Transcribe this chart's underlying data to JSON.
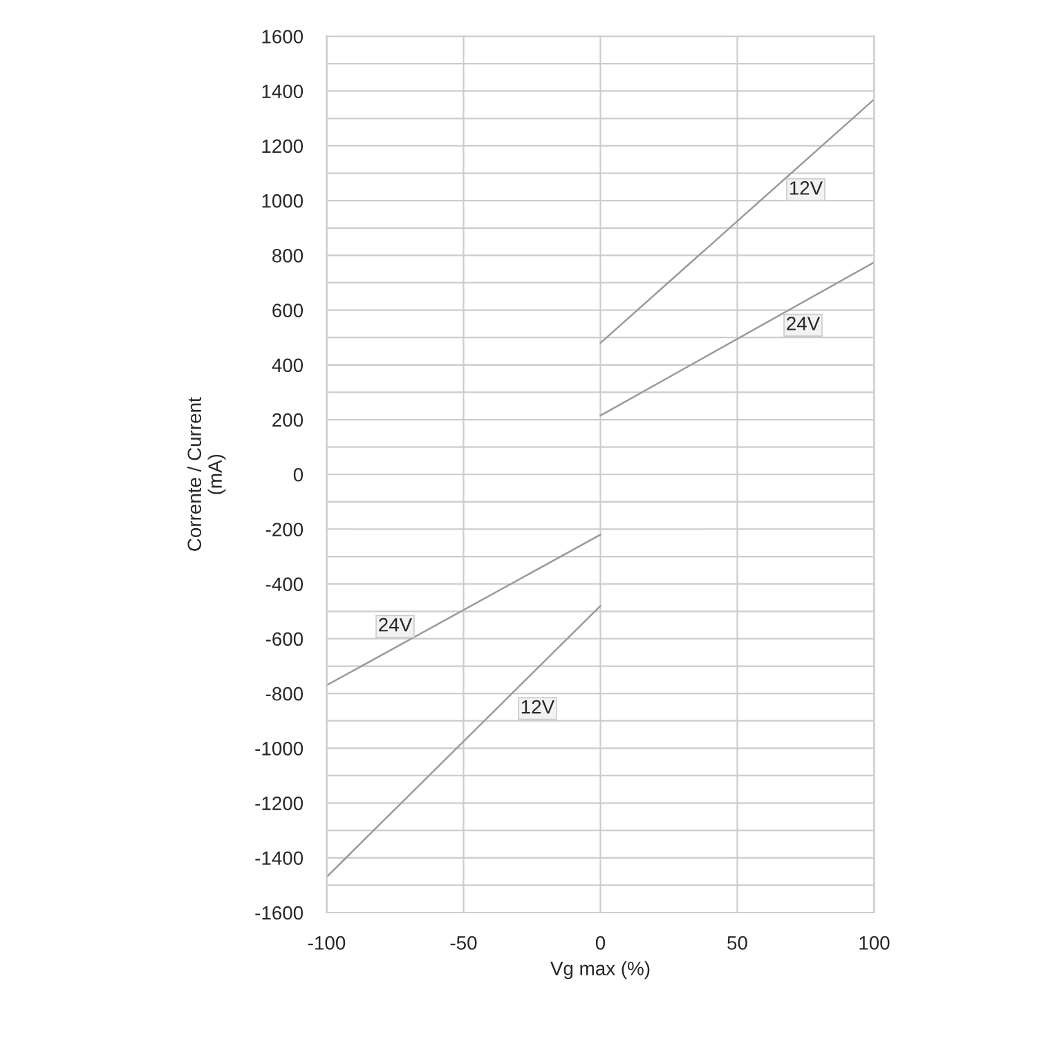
{
  "chart_data": {
    "type": "line",
    "xlabel": "Vg max (%)",
    "ylabel": "Corrente / Current\n(mA)",
    "series": [
      {
        "color": "#9a9a9a",
        "x": [
          0,
          100
        ],
        "values": [
          480,
          1370
        ]
      },
      {
        "color": "#9a9a9a",
        "x": [
          0,
          100
        ],
        "values": [
          215,
          775
        ]
      },
      {
        "color": "#9a9a9a",
        "x": [
          -100,
          0
        ],
        "values": [
          -770,
          -220
        ]
      },
      {
        "color": "#9a9a9a",
        "x": [
          -100,
          0
        ],
        "values": [
          -1470,
          -480
        ]
      }
    ],
    "annotations": [
      {
        "text": "12V",
        "x": 75,
        "y": 1040
      },
      {
        "text": "24V",
        "x": 74,
        "y": 545
      },
      {
        "text": "24V",
        "x": -75,
        "y": -555
      },
      {
        "text": "12V",
        "x": -23,
        "y": -855
      }
    ],
    "xlim": [
      -100,
      100
    ],
    "xticks": [
      -100,
      -50,
      0,
      50,
      100
    ],
    "ylim": [
      -1600,
      1600
    ],
    "yticks": [
      -1600,
      {
        "value": -1500,
        "label": null
      },
      -1400,
      {
        "value": -1300,
        "label": null
      },
      -1200,
      {
        "value": -1100,
        "label": null
      },
      -1000,
      {
        "value": -900,
        "label": null
      },
      -800,
      {
        "value": -700,
        "label": null
      },
      -600,
      {
        "value": -500,
        "label": null
      },
      -400,
      {
        "value": -300,
        "label": null
      },
      -200,
      {
        "value": -100,
        "label": null
      },
      0,
      {
        "value": 100,
        "label": null
      },
      200,
      {
        "value": 300,
        "label": null
      },
      400,
      {
        "value": 500,
        "label": null
      },
      600,
      {
        "value": 700,
        "label": null
      },
      800,
      {
        "value": 900,
        "label": null
      },
      1000,
      {
        "value": 1100,
        "label": null
      },
      1200,
      {
        "value": 1300,
        "label": null
      },
      1400,
      {
        "value": 1500,
        "label": null
      },
      1600
    ],
    "grid": true,
    "legend": false,
    "marker": "none",
    "line_style": "solid"
  }
}
